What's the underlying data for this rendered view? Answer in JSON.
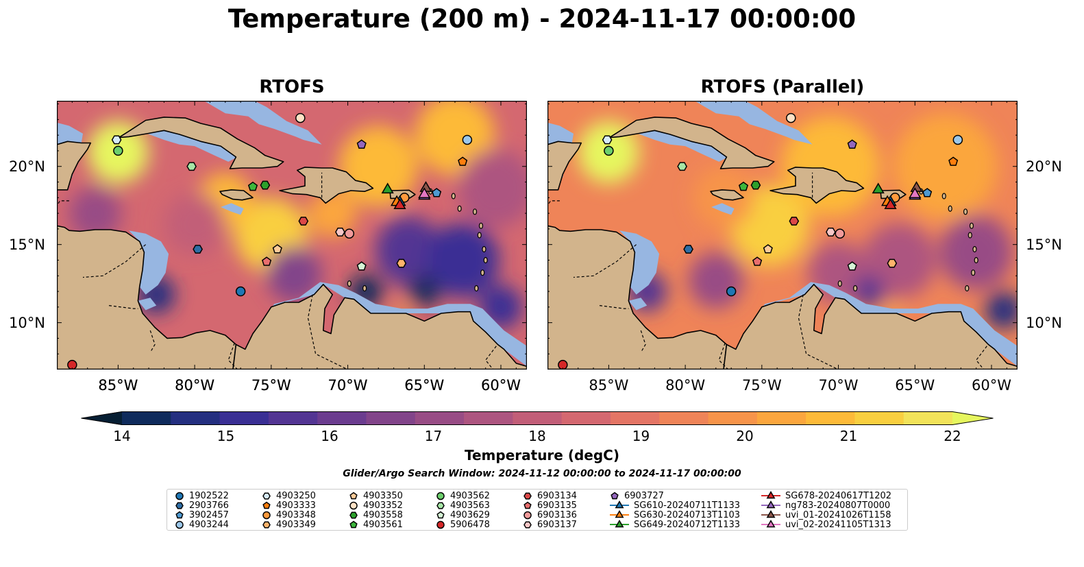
{
  "title": "Temperature (200 m) - 2024-11-17 00:00:00",
  "maps": [
    {
      "id": "rtofs",
      "title": "RTOFS"
    },
    {
      "id": "parallel",
      "title": "RTOFS (Parallel)"
    }
  ],
  "x_ticks": [
    "85°W",
    "80°W",
    "75°W",
    "70°W",
    "65°W",
    "60°W"
  ],
  "x_tick_lon": [
    -85,
    -80,
    -75,
    -70,
    -65,
    -60
  ],
  "y_ticks": [
    "20°N",
    "15°N",
    "10°N"
  ],
  "y_tick_lat": [
    20,
    15,
    10
  ],
  "extent": {
    "lon": [
      -89,
      -58.3
    ],
    "lat": [
      7,
      24.2
    ]
  },
  "colorbar": {
    "label": "Temperature (degC)",
    "ticks": [
      "14",
      "15",
      "16",
      "17",
      "18",
      "19",
      "20",
      "21",
      "22"
    ],
    "min": 14,
    "max": 22,
    "extend": "both",
    "colors": [
      "#061e33",
      "#0f2b5c",
      "#242f80",
      "#3a2f94",
      "#533593",
      "#6b3c8f",
      "#82448a",
      "#984c85",
      "#ad5580",
      "#c25e78",
      "#d46870",
      "#e47565",
      "#ef8458",
      "#f7944a",
      "#fba63e",
      "#fdba39",
      "#f9cf40",
      "#f2e35a",
      "#e6f65e"
    ]
  },
  "search_window": "Glider/Argo Search Window: 2024-11-12 00:00:00 to 2024-11-17 00:00:00",
  "colors": {
    "land": "#d2b48c",
    "shallow_water": "#97b6e1",
    "border": "#000000"
  },
  "legend": [
    {
      "label": "1902522",
      "marker": "circle",
      "color": "#1f77b4"
    },
    {
      "label": "2903766",
      "marker": "hexagon",
      "color": "#2f6ea5"
    },
    {
      "label": "3902457",
      "marker": "pentagon",
      "color": "#4f9ad1"
    },
    {
      "label": "4903244",
      "marker": "circle",
      "color": "#9cc8ea"
    },
    {
      "label": "4903250",
      "marker": "hexagon",
      "color": "#d6ecf8"
    },
    {
      "label": "4903333",
      "marker": "pentagon",
      "color": "#ff7f0e"
    },
    {
      "label": "4903348",
      "marker": "circle",
      "color": "#ff9a3c"
    },
    {
      "label": "4903349",
      "marker": "hexagon",
      "color": "#ffb46b"
    },
    {
      "label": "4903350",
      "marker": "pentagon",
      "color": "#ffcc99"
    },
    {
      "label": "4903352",
      "marker": "circle",
      "color": "#ffe2c6"
    },
    {
      "label": "4903558",
      "marker": "hexagon",
      "color": "#2ca02c"
    },
    {
      "label": "4903561",
      "marker": "pentagon",
      "color": "#3db73d"
    },
    {
      "label": "4903562",
      "marker": "circle",
      "color": "#6ccf6c"
    },
    {
      "label": "4903563",
      "marker": "hexagon",
      "color": "#a6e6a6"
    },
    {
      "label": "4903629",
      "marker": "pentagon",
      "color": "#d6f5d6"
    },
    {
      "label": "5906478",
      "marker": "circle",
      "color": "#d62728"
    },
    {
      "label": "6903134",
      "marker": "hexagon",
      "color": "#dc4848"
    },
    {
      "label": "6903135",
      "marker": "pentagon",
      "color": "#e96e6e"
    },
    {
      "label": "6903136",
      "marker": "circle",
      "color": "#f19b9b"
    },
    {
      "label": "6903137",
      "marker": "hexagon",
      "color": "#f8c7c7"
    },
    {
      "label": "6903727",
      "marker": "pentagon",
      "color": "#9467bd"
    },
    {
      "label": "SG610-20240711T1133",
      "marker": "triangle",
      "color": "#1f77b4"
    },
    {
      "label": "SG630-20240713T1103",
      "marker": "triangle",
      "color": "#ff7f0e"
    },
    {
      "label": "SG649-20240712T1133",
      "marker": "triangle",
      "color": "#2ca02c"
    },
    {
      "label": "SG678-20240617T1202",
      "marker": "triangle",
      "color": "#d62728"
    },
    {
      "label": "ng783-20240807T0000",
      "marker": "triangle",
      "color": "#9467bd"
    },
    {
      "label": "uvi_01-20241026T1158",
      "marker": "triangle",
      "color": "#8c564b"
    },
    {
      "label": "uvi_02-20241105T1313",
      "marker": "triangle",
      "color": "#e377c2"
    }
  ],
  "floats": [
    {
      "label": "1902522",
      "marker": "circle",
      "color": "#1f77b4",
      "lon": -77.0,
      "lat": 12.0
    },
    {
      "label": "2903766",
      "marker": "hexagon",
      "color": "#2f6ea5",
      "lon": -79.8,
      "lat": 14.7
    },
    {
      "label": "3902457",
      "marker": "pentagon",
      "color": "#4f9ad1",
      "lon": -64.2,
      "lat": 18.3
    },
    {
      "label": "4903244",
      "marker": "circle",
      "color": "#9cc8ea",
      "lon": -62.2,
      "lat": 21.7
    },
    {
      "label": "4903250",
      "marker": "hexagon",
      "color": "#d6ecf8",
      "lon": -85.1,
      "lat": 21.7
    },
    {
      "label": "4903333",
      "marker": "pentagon",
      "color": "#ff7f0e",
      "lon": -62.5,
      "lat": 20.3
    },
    {
      "label": "4903348",
      "marker": "circle",
      "color": "#ff9a3c",
      "lon": -66.3,
      "lat": 18.0
    },
    {
      "label": "4903349",
      "marker": "hexagon",
      "color": "#ffb46b",
      "lon": -66.5,
      "lat": 13.8
    },
    {
      "label": "4903350",
      "marker": "pentagon",
      "color": "#ffcc99",
      "lon": -74.6,
      "lat": 14.7
    },
    {
      "label": "4903352",
      "marker": "circle",
      "color": "#ffe2c6",
      "lon": -73.1,
      "lat": 23.1
    },
    {
      "label": "4903558",
      "marker": "hexagon",
      "color": "#2ca02c",
      "lon": -75.4,
      "lat": 18.8
    },
    {
      "label": "4903561",
      "marker": "pentagon",
      "color": "#3db73d",
      "lon": -76.2,
      "lat": 18.7
    },
    {
      "label": "4903562",
      "marker": "circle",
      "color": "#6ccf6c",
      "lon": -85.0,
      "lat": 21.0
    },
    {
      "label": "4903563",
      "marker": "hexagon",
      "color": "#a6e6a6",
      "lon": -80.2,
      "lat": 20.0
    },
    {
      "label": "4903629",
      "marker": "pentagon",
      "color": "#d6f5d6",
      "lon": -69.1,
      "lat": 13.6
    },
    {
      "label": "5906478",
      "marker": "circle",
      "color": "#d62728",
      "lon": -88.0,
      "lat": 7.3
    },
    {
      "label": "6903134",
      "marker": "hexagon",
      "color": "#dc4848",
      "lon": -72.9,
      "lat": 16.5
    },
    {
      "label": "6903135",
      "marker": "pentagon",
      "color": "#e96e6e",
      "lon": -75.3,
      "lat": 13.9
    },
    {
      "label": "6903136",
      "marker": "circle",
      "color": "#f19b9b",
      "lon": -69.9,
      "lat": 15.7
    },
    {
      "label": "6903137",
      "marker": "hexagon",
      "color": "#f8c7c7",
      "lon": -70.5,
      "lat": 15.8
    },
    {
      "label": "6903727",
      "marker": "pentagon",
      "color": "#9467bd",
      "lon": -69.1,
      "lat": 21.4
    },
    {
      "label": "SG610-20240711T1133",
      "marker": "triangle",
      "color": "#1f77b4",
      "lon": -66.6,
      "lat": 17.7
    },
    {
      "label": "SG630-20240713T1103",
      "marker": "triangle",
      "color": "#ff7f0e",
      "lon": -66.8,
      "lat": 17.7
    },
    {
      "label": "SG649-20240712T1133",
      "marker": "triangle",
      "color": "#2ca02c",
      "lon": -67.4,
      "lat": 18.5
    },
    {
      "label": "SG678-20240617T1202",
      "marker": "triangle",
      "color": "#d62728",
      "lon": -66.6,
      "lat": 17.5
    },
    {
      "label": "ng783-20240807T0000",
      "marker": "triangle",
      "color": "#9467bd",
      "lon": -65.0,
      "lat": 18.1
    },
    {
      "label": "uvi_01-20241026T1158",
      "marker": "triangle",
      "color": "#8c564b",
      "lon": -64.9,
      "lat": 18.6
    },
    {
      "label": "uvi_02-20241105T1313",
      "marker": "triangle",
      "color": "#e377c2",
      "lon": -65.0,
      "lat": 18.2
    }
  ]
}
